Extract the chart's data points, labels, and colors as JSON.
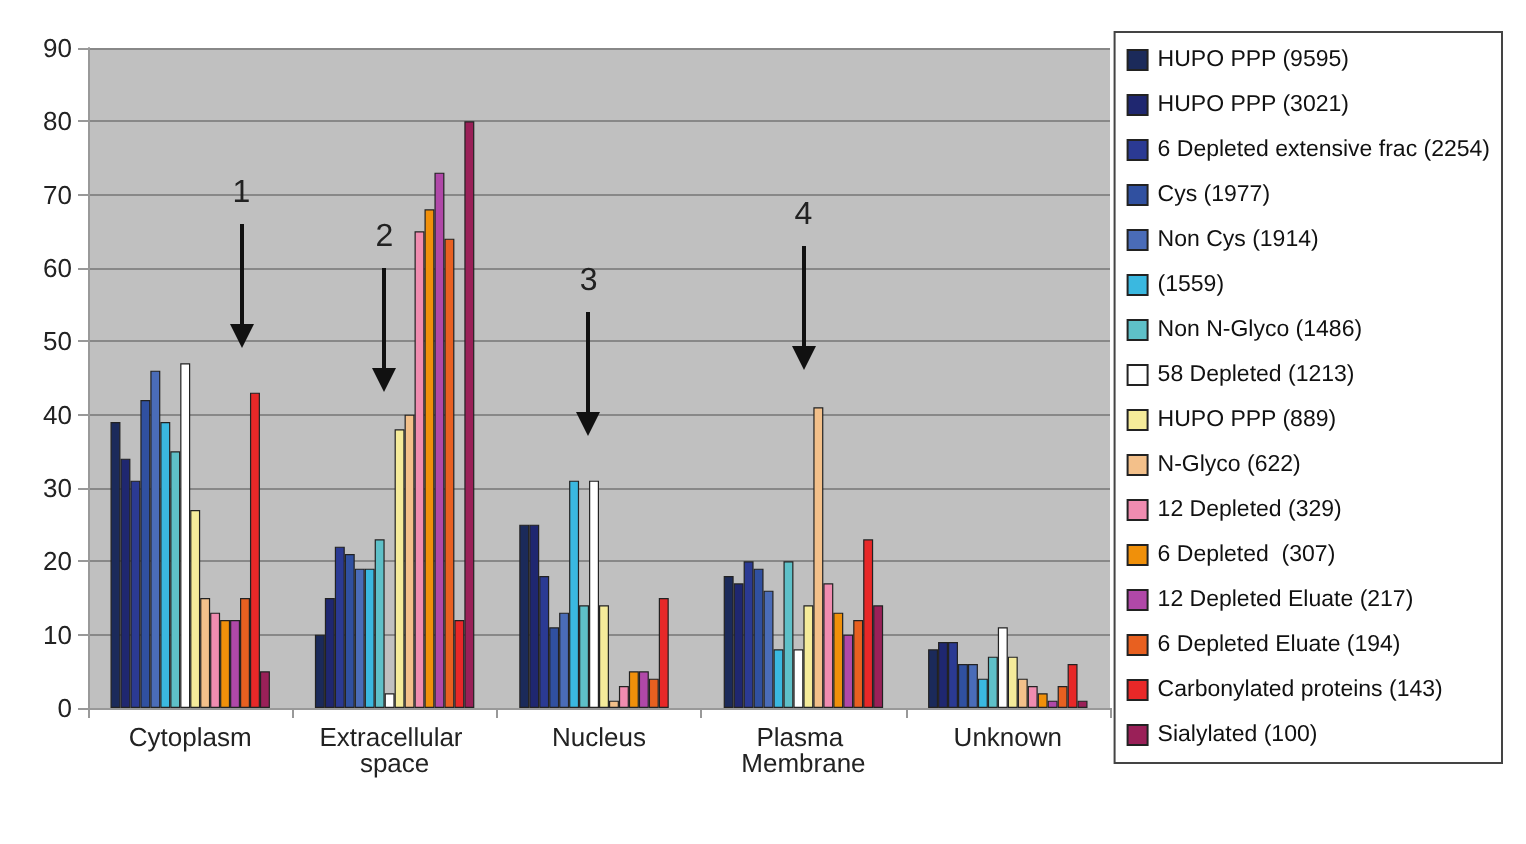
{
  "chart_data": {
    "type": "bar",
    "categories": [
      "Cytoplasm",
      "Extracellular space",
      "Nucleus",
      "Plasma Membrane",
      "Unknown"
    ],
    "series": [
      {
        "name": "HUPO PPP (9595)",
        "color": "#1b2a5a",
        "values": [
          39,
          10,
          25,
          18,
          8
        ]
      },
      {
        "name": "HUPO PPP (3021)",
        "color": "#1f2770",
        "values": [
          34,
          15,
          25,
          17,
          9
        ]
      },
      {
        "name": "6 Depleted extensive frac (2254)",
        "color": "#2b3a93",
        "values": [
          31,
          22,
          18,
          20,
          9
        ]
      },
      {
        "name": "Cys (1977)",
        "color": "#3050a0",
        "values": [
          42,
          21,
          11,
          19,
          6
        ]
      },
      {
        "name": "Non Cys (1914)",
        "color": "#4a6cb8",
        "values": [
          46,
          19,
          13,
          16,
          6
        ]
      },
      {
        "name": "(1559)",
        "color": "#3ab8e0",
        "values": [
          39,
          19,
          31,
          8,
          4
        ]
      },
      {
        "name": "Non N-Glyco (1486)",
        "color": "#5ec0c8",
        "values": [
          35,
          23,
          14,
          20,
          7
        ]
      },
      {
        "name": "58 Depleted (1213)",
        "color": "#ffffff",
        "values": [
          47,
          2,
          31,
          8,
          11
        ]
      },
      {
        "name": "HUPO PPP (889)",
        "color": "#f5eb9a",
        "values": [
          27,
          38,
          14,
          14,
          7
        ]
      },
      {
        "name": "N-Glyco (622)",
        "color": "#f3c08a",
        "values": [
          15,
          40,
          1,
          41,
          4
        ]
      },
      {
        "name": "12 Depleted (329)",
        "color": "#f08cb0",
        "values": [
          13,
          65,
          3,
          17,
          3
        ]
      },
      {
        "name": "6 Depleted  (307)",
        "color": "#f0900a",
        "values": [
          12,
          68,
          5,
          13,
          2
        ]
      },
      {
        "name": "12 Depleted Eluate (217)",
        "color": "#b048a8",
        "values": [
          12,
          73,
          5,
          10,
          1
        ]
      },
      {
        "name": "6 Depleted Eluate (194)",
        "color": "#e86020",
        "values": [
          15,
          64,
          4,
          12,
          3
        ]
      },
      {
        "name": "Carbonylated proteins (143)",
        "color": "#e82828",
        "values": [
          43,
          12,
          15,
          23,
          6
        ]
      },
      {
        "name": "Sialylated (100)",
        "color": "#9a2058",
        "values": [
          5,
          80,
          0,
          14,
          1
        ]
      }
    ],
    "ylim": [
      0,
      90
    ],
    "yticks": [
      0,
      10,
      20,
      30,
      40,
      50,
      60,
      70,
      80,
      90
    ],
    "grid": "y",
    "legend": "right",
    "annotations": [
      "1",
      "2",
      "3",
      "4"
    ]
  }
}
